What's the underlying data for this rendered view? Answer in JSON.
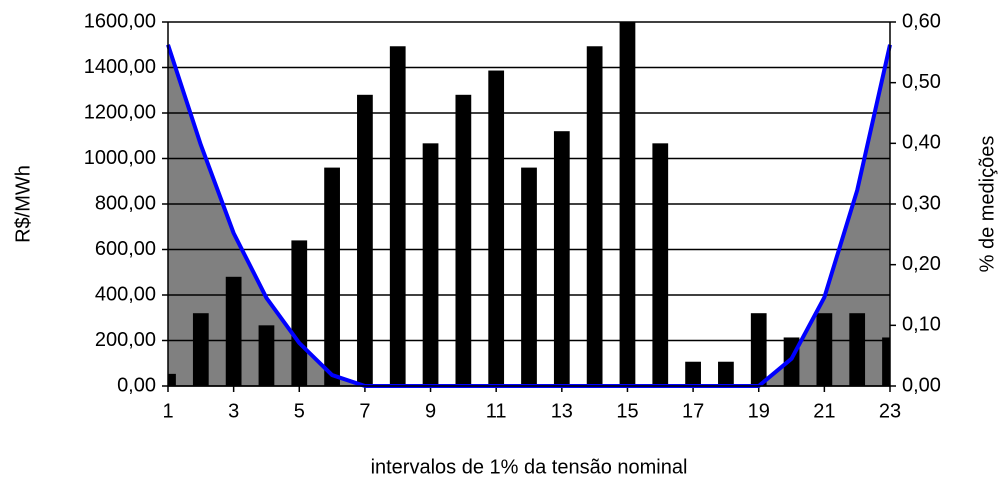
{
  "chart_data": {
    "type": "combo",
    "x_label": "intervalos de 1% da tensão nominal",
    "y_label": "R$/MWh",
    "y2_label": "% de medições",
    "x": [
      1,
      2,
      3,
      4,
      5,
      6,
      7,
      8,
      9,
      10,
      11,
      12,
      13,
      14,
      15,
      16,
      17,
      18,
      19,
      20,
      21,
      22,
      23
    ],
    "xlim": [
      1,
      23
    ],
    "xticks": [
      1,
      3,
      5,
      7,
      9,
      11,
      13,
      15,
      17,
      19,
      21,
      23
    ],
    "ylim": [
      0,
      1600
    ],
    "yticks": [
      {
        "value": 0,
        "label": "0,00"
      },
      {
        "value": 200,
        "label": "200,00"
      },
      {
        "value": 400,
        "label": "400,00"
      },
      {
        "value": 600,
        "label": "600,00"
      },
      {
        "value": 800,
        "label": "800,00"
      },
      {
        "value": 1000,
        "label": "1000,00"
      },
      {
        "value": 1200,
        "label": "1200,00"
      },
      {
        "value": 1400,
        "label": "1400,00"
      },
      {
        "value": 1600,
        "label": "1600,00"
      }
    ],
    "y2lim": [
      0,
      0.6
    ],
    "y2ticks": [
      {
        "value": 0,
        "label": "0,00"
      },
      {
        "value": 0.1,
        "label": "0,10"
      },
      {
        "value": 0.2,
        "label": "0,20"
      },
      {
        "value": 0.3,
        "label": "0,30"
      },
      {
        "value": 0.4,
        "label": "0,40"
      },
      {
        "value": 0.5,
        "label": "0,50"
      },
      {
        "value": 0.6,
        "label": "0,60"
      }
    ],
    "grid": true,
    "series": [
      {
        "type": "area",
        "color": "#0000ff",
        "fill": "#808080",
        "values": [
          1500,
          1060,
          672,
          387,
          189,
          48,
          0,
          0,
          0,
          0,
          0,
          0,
          0,
          0,
          0,
          0,
          0,
          0,
          0,
          120,
          390,
          860,
          1500
        ]
      },
      {
        "type": "bar",
        "axis": "y2",
        "color": "#000000",
        "values": [
          0.02,
          0.12,
          0.18,
          0.1,
          0.24,
          0.36,
          0.48,
          0.56,
          0.4,
          0.48,
          0.52,
          0.36,
          0.42,
          0.56,
          0.6,
          0.4,
          0.04,
          0.04,
          0.12,
          0.08,
          0.12,
          0.12,
          0.08
        ]
      }
    ]
  }
}
